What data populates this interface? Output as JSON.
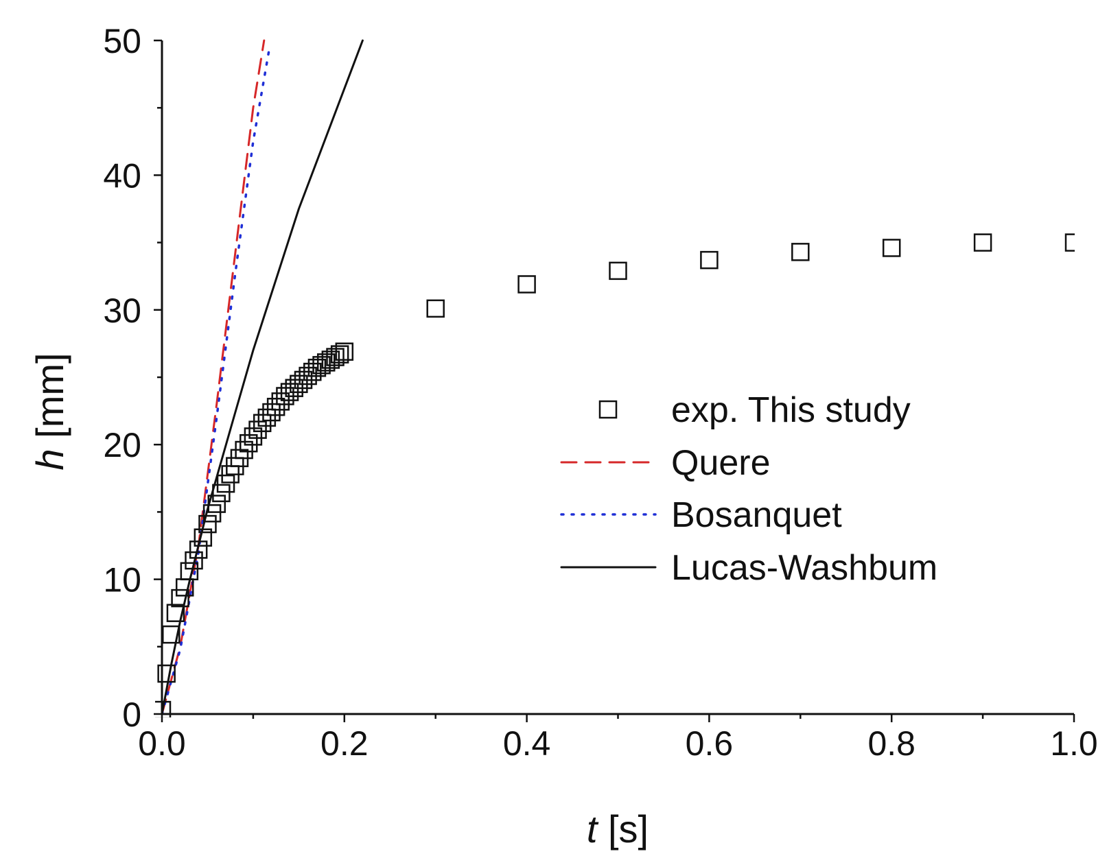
{
  "chart_data": {
    "type": "scatter+line",
    "title": "",
    "xlabel": {
      "var": "t",
      "unit": "[s]"
    },
    "ylabel": {
      "var": "h",
      "unit": "[mm]"
    },
    "xlim": [
      0.0,
      1.0
    ],
    "ylim": [
      0,
      50
    ],
    "x_ticks": [
      "0.0",
      "0.2",
      "0.4",
      "0.6",
      "0.8",
      "1.0"
    ],
    "x_tick_values": [
      0.0,
      0.2,
      0.4,
      0.6,
      0.8,
      1.0
    ],
    "y_ticks": [
      "0",
      "10",
      "20",
      "30",
      "40",
      "50"
    ],
    "y_tick_values": [
      0,
      10,
      20,
      30,
      40,
      50
    ],
    "grid": false,
    "legend_position": "center-right",
    "series": [
      {
        "name": "exp. This study",
        "kind": "markers",
        "marker": "open-square",
        "color": "#111111",
        "x": [
          0.0,
          0.005,
          0.01,
          0.015,
          0.02,
          0.025,
          0.03,
          0.035,
          0.04,
          0.045,
          0.05,
          0.055,
          0.06,
          0.065,
          0.07,
          0.075,
          0.08,
          0.085,
          0.09,
          0.095,
          0.1,
          0.105,
          0.11,
          0.115,
          0.12,
          0.125,
          0.13,
          0.135,
          0.14,
          0.145,
          0.15,
          0.155,
          0.16,
          0.165,
          0.17,
          0.175,
          0.18,
          0.185,
          0.19,
          0.195,
          0.2,
          0.3,
          0.4,
          0.5,
          0.6,
          0.7,
          0.8,
          0.9,
          1.0
        ],
        "y": [
          0.3,
          3.0,
          5.9,
          7.5,
          8.6,
          9.4,
          10.6,
          11.4,
          12.2,
          13.1,
          14.1,
          14.9,
          15.6,
          16.4,
          17.1,
          17.8,
          18.4,
          19.0,
          19.6,
          20.1,
          20.6,
          21.1,
          21.6,
          22.0,
          22.4,
          22.8,
          23.2,
          23.6,
          23.9,
          24.2,
          24.5,
          24.8,
          25.1,
          25.4,
          25.7,
          25.9,
          26.1,
          26.3,
          26.5,
          26.7,
          26.9,
          30.1,
          31.9,
          32.9,
          33.7,
          34.3,
          34.6,
          35.0,
          35.0
        ]
      },
      {
        "name": "Quere",
        "kind": "line",
        "dash": "dashed",
        "color": "#d62728",
        "x": [
          0.0,
          0.02,
          0.04,
          0.06,
          0.08,
          0.1,
          0.112
        ],
        "y": [
          0.0,
          5.0,
          12.5,
          23.0,
          34.0,
          45.0,
          50.0
        ]
      },
      {
        "name": "Bosanquet",
        "kind": "line",
        "dash": "dotted",
        "color": "#1f2fd6",
        "x": [
          0.0,
          0.02,
          0.04,
          0.06,
          0.08,
          0.1,
          0.118
        ],
        "y": [
          0.0,
          4.8,
          12.0,
          22.0,
          32.5,
          42.5,
          49.5
        ]
      },
      {
        "name": "Lucas-Washbum",
        "kind": "line",
        "dash": "solid",
        "color": "#111111",
        "x": [
          0.0,
          0.01,
          0.02,
          0.03,
          0.05,
          0.08,
          0.1,
          0.15,
          0.22
        ],
        "y": [
          0.0,
          3.6,
          6.9,
          9.8,
          15.2,
          22.3,
          27.0,
          37.5,
          50.0
        ]
      }
    ]
  }
}
